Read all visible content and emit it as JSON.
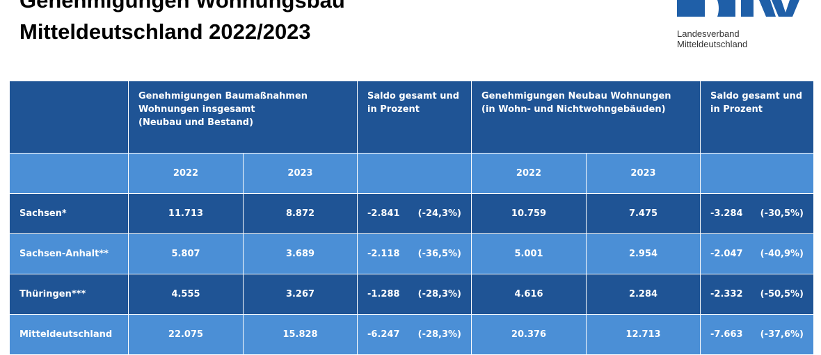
{
  "title": {
    "line1": "Genehmigungen Wohnungsbau",
    "line2": "Mitteldeutschland 2022/2023"
  },
  "logo": {
    "text": "BFW",
    "subtitle_line1": "Landesverband",
    "subtitle_line2": "Mitteldeutschland",
    "color": "#1f5fa8"
  },
  "colors": {
    "dark_row": "#1f5495",
    "light_row": "#4b8fd6"
  },
  "table": {
    "header": {
      "col1": "",
      "group1": [
        "Genehmigungen Baumaßnahmen",
        "Wohnungen insgesamt",
        "(Neubau und Bestand)"
      ],
      "saldo1": [
        "Saldo gesamt und",
        "in Prozent"
      ],
      "group2": [
        "Genehmigungen Neubau Wohnungen",
        "(in Wohn- und Nichtwohngebäuden)"
      ],
      "saldo2": [
        "Saldo gesamt und",
        "in Prozent"
      ]
    },
    "years": [
      "2022",
      "2023",
      "2022",
      "2023"
    ],
    "rows": [
      {
        "label": "Sachsen*",
        "a2022": "11.713",
        "a2023": "8.872",
        "saldo1": "-2.841",
        "pct1": "(-24,3%)",
        "b2022": "10.759",
        "b2023": "7.475",
        "saldo2": "-3.284",
        "pct2": "(-30,5%)"
      },
      {
        "label": "Sachsen-Anhalt**",
        "a2022": "5.807",
        "a2023": "3.689",
        "saldo1": "-2.118",
        "pct1": "(-36,5%)",
        "b2022": "5.001",
        "b2023": "2.954",
        "saldo2": "-2.047",
        "pct2": "(-40,9%)"
      },
      {
        "label": "Thüringen***",
        "a2022": "4.555",
        "a2023": "3.267",
        "saldo1": "-1.288",
        "pct1": "(-28,3%)",
        "b2022": "4.616",
        "b2023": "2.284",
        "saldo2": "-2.332",
        "pct2": "(-50,5%)"
      },
      {
        "label": "Mitteldeutschland",
        "a2022": "22.075",
        "a2023": "15.828",
        "saldo1": "-6.247",
        "pct1": "(-28,3%)",
        "b2022": "20.376",
        "b2023": "12.713",
        "saldo2": "-7.663",
        "pct2": "(-37,6%)"
      }
    ]
  }
}
